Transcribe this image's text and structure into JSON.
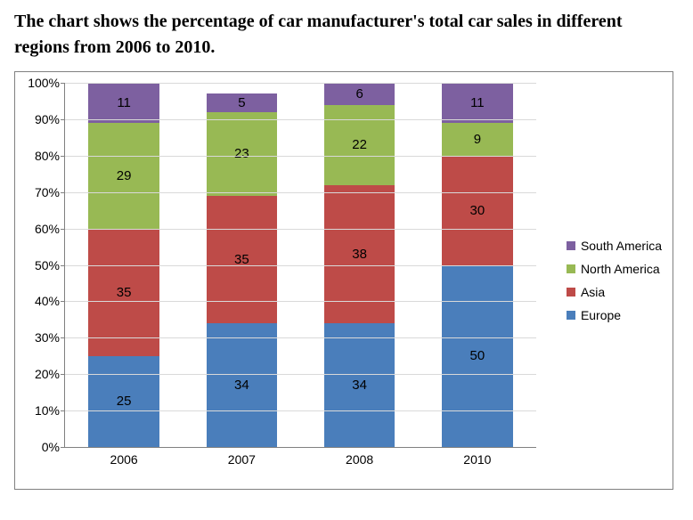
{
  "title": "The chart shows the percentage of car manufacturer's total car sales in different regions from 2006 to 2010.",
  "chart": {
    "type": "stacked-bar",
    "background_color": "#ffffff",
    "frame_border_color": "#808080",
    "gridline_color": "#d9d9d9",
    "axis_color": "#808080",
    "y_axis": {
      "min": 0,
      "max": 100,
      "tick_step": 10,
      "tick_suffix": "%",
      "ticks": [
        "0%",
        "10%",
        "20%",
        "30%",
        "40%",
        "50%",
        "60%",
        "70%",
        "80%",
        "90%",
        "100%"
      ],
      "label_fontsize": 14
    },
    "x_axis": {
      "categories": [
        "2006",
        "2007",
        "2008",
        "2010"
      ],
      "label_fontsize": 14
    },
    "series": [
      {
        "name": "Europe",
        "color": "#4a7ebb"
      },
      {
        "name": "Asia",
        "color": "#be4b48"
      },
      {
        "name": "North America",
        "color": "#98b954"
      },
      {
        "name": "South America",
        "color": "#7d60a0"
      }
    ],
    "legend_order": [
      "South America",
      "North America",
      "Asia",
      "Europe"
    ],
    "bar_width_ratio": 0.6,
    "data_label_fontsize": 15,
    "data": {
      "2006": {
        "Europe": 25,
        "Asia": 35,
        "North America": 29,
        "South America": 11
      },
      "2007": {
        "Europe": 34,
        "Asia": 35,
        "North America": 23,
        "South America": 5,
        "_hide_labels": [
          "Europe"
        ],
        "_overflow_label": {
          "Europe": 34
        }
      },
      "2008": {
        "Europe": 34,
        "Asia": 38,
        "North America": 22,
        "South America": 6
      },
      "2010": {
        "Europe": 50,
        "Asia": 30,
        "North America": 9,
        "South America": 11
      }
    }
  }
}
